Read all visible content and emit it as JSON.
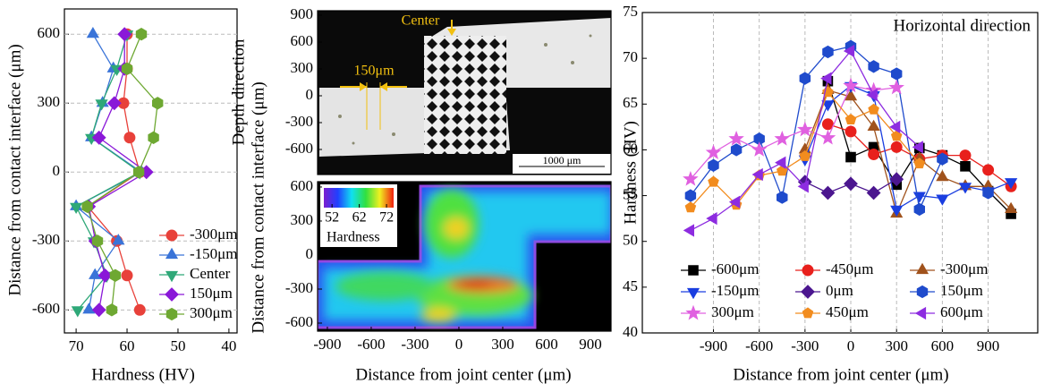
{
  "chart_data": [
    {
      "type": "line",
      "xlabel": "Hardness (HV)",
      "ylabel": "Distance from contact interface (μm)",
      "xlim": [
        72.3,
        38.4
      ],
      "xticks": [
        70,
        60,
        50,
        40
      ],
      "ylim": [
        -700,
        710
      ],
      "yticks": [
        -600,
        -300,
        0,
        300,
        600
      ],
      "grid": "y",
      "legend": "lower right",
      "y": [
        600,
        450,
        300,
        150,
        0,
        -150,
        -300,
        -450,
        -600
      ],
      "series": [
        {
          "name": "-300μm",
          "color": "#e8413a",
          "marker": "circle",
          "values": [
            60,
            60,
            60.7,
            59.5,
            57.5,
            67.7,
            62,
            60,
            57.5
          ]
        },
        {
          "name": "-150μm",
          "color": "#3a74d8",
          "marker": "triangle-up",
          "values": [
            66.7,
            62.7,
            64.8,
            67,
            57.2,
            70,
            61.7,
            66.3,
            67.5
          ]
        },
        {
          "name": "Center",
          "color": "#2fa878",
          "marker": "triangle-down",
          "values": [
            60,
            62,
            65,
            67,
            57.5,
            70,
            66.5,
            64,
            69.7
          ]
        },
        {
          "name": "150μm",
          "color": "#8a18d8",
          "marker": "diamond",
          "values": [
            60.5,
            60.5,
            62.5,
            65.5,
            56.2,
            67.5,
            66.2,
            64.3,
            65.5
          ]
        },
        {
          "name": "300μm",
          "color": "#6ea832",
          "marker": "hexagon",
          "values": [
            57.2,
            60,
            54,
            54.8,
            57.7,
            67.8,
            65.8,
            62.3,
            63
          ]
        }
      ]
    },
    {
      "type": "image",
      "ylabel": "Depth direction",
      "xlim": [
        -967,
        1041
      ],
      "ylim": [
        -880,
        950
      ],
      "yticks": [
        -600,
        -300,
        0,
        300,
        600,
        900
      ],
      "annotations": [
        "Center",
        "150μm",
        "1000 μm"
      ]
    },
    {
      "type": "contour",
      "xlabel": "Distance from joint center (μm)",
      "ylabel": "Distance from contact interface (μm)",
      "xlim": [
        -967,
        1041
      ],
      "xticks": [
        -900,
        -600,
        -300,
        0,
        300,
        600,
        900
      ],
      "ylim": [
        -671,
        647
      ],
      "yticks": [
        -600,
        -300,
        0,
        300,
        600
      ],
      "colorbar": {
        "label": "Hardness",
        "lim": [
          49,
          74.6
        ],
        "ticks": [
          52,
          62,
          72
        ]
      }
    },
    {
      "type": "line",
      "title": "Horizontal direction",
      "xlabel": "Distance from joint center (μm)",
      "ylabel": "Hardness (HV)",
      "xlim": [
        -1366,
        1225
      ],
      "xticks": [
        -900,
        -600,
        -300,
        0,
        300,
        600,
        900
      ],
      "ylim": [
        40,
        75
      ],
      "yticks": [
        40,
        45,
        50,
        55,
        60,
        65,
        70,
        75
      ],
      "grid": "x",
      "legend": "bottom",
      "x": [
        -1050,
        -900,
        -750,
        -600,
        -450,
        -300,
        -150,
        0,
        150,
        300,
        450,
        600,
        750,
        900,
        1050
      ],
      "series": [
        {
          "name": "-600μm",
          "color": "#000000",
          "marker": "square",
          "values": [
            null,
            null,
            null,
            null,
            null,
            null,
            67.5,
            59.2,
            60.3,
            56.2,
            60.2,
            59.4,
            58.2,
            55.5,
            53
          ]
        },
        {
          "name": "-450μm",
          "color": "#e8201c",
          "marker": "circle",
          "values": [
            null,
            null,
            null,
            null,
            null,
            null,
            62.8,
            62,
            59.5,
            60.3,
            59,
            59.4,
            59.4,
            57.8,
            56
          ]
        },
        {
          "name": "-300μm",
          "color": "#a0521c",
          "marker": "triangle-up",
          "values": [
            null,
            null,
            null,
            null,
            null,
            60,
            66.5,
            65.8,
            62.5,
            53,
            59,
            57,
            56,
            56,
            53.5
          ]
        },
        {
          "name": "-150μm",
          "color": "#1a3ee0",
          "marker": "triangle-down",
          "values": [
            null,
            null,
            null,
            null,
            null,
            59,
            65,
            67,
            66,
            53.5,
            55,
            54.7,
            56,
            55.5,
            56.5
          ]
        },
        {
          "name": "0μm",
          "color": "#4b168f",
          "marker": "diamond",
          "values": [
            null,
            null,
            null,
            null,
            null,
            56.5,
            55.3,
            56.3,
            55.3,
            56.8,
            null,
            null,
            null,
            null,
            null
          ]
        },
        {
          "name": "150μm",
          "color": "#1f4bcc",
          "marker": "hexagon",
          "values": [
            55,
            58.3,
            60,
            61.2,
            54.8,
            67.8,
            70.7,
            71.3,
            69.1,
            68.3,
            53.5,
            59,
            null,
            55.3,
            null
          ]
        },
        {
          "name": "300μm",
          "color": "#e060e0",
          "marker": "star",
          "values": [
            56.8,
            59.7,
            61.2,
            60,
            61.2,
            62.2,
            61.3,
            67,
            66.5,
            66.8,
            null,
            null,
            null,
            null,
            null
          ]
        },
        {
          "name": "450μm",
          "color": "#f28c1e",
          "marker": "pentagon",
          "values": [
            53.7,
            56.5,
            54,
            57.2,
            57.7,
            59.3,
            66.3,
            63.3,
            64.4,
            61.5,
            58.5,
            null,
            null,
            null,
            null
          ]
        },
        {
          "name": "600μm",
          "color": "#8d2ce0",
          "marker": "triangle-left",
          "values": [
            51.2,
            52.5,
            54.3,
            57.3,
            58.6,
            56,
            67.8,
            70.8,
            66,
            62.5,
            60.3,
            null,
            null,
            null,
            null
          ]
        }
      ]
    }
  ]
}
